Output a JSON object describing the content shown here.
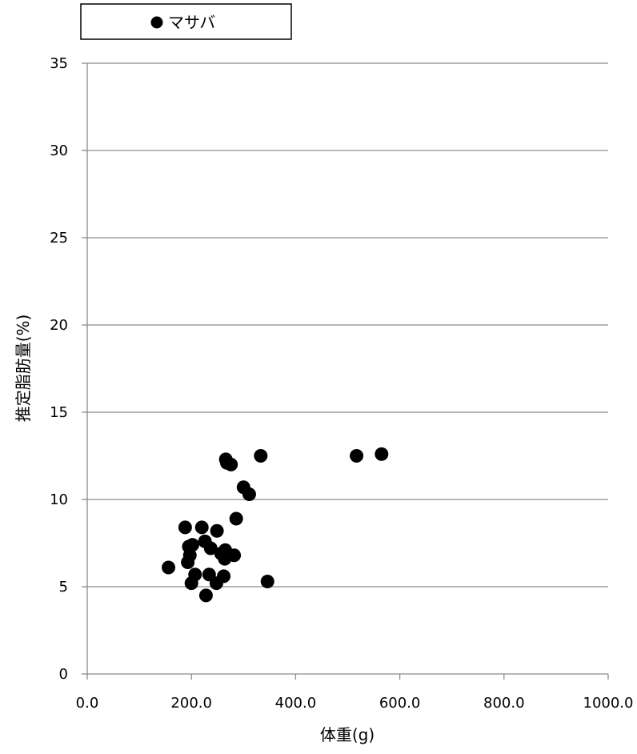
{
  "chart_data": {
    "type": "scatter",
    "title": "",
    "xlabel": "体重(g)",
    "ylabel": "推定脂肪量(%)",
    "xlim": [
      0,
      1000
    ],
    "ylim": [
      0,
      35
    ],
    "x_ticks": [
      "0.0",
      "200.0",
      "400.0",
      "600.0",
      "800.0",
      "1000.0"
    ],
    "y_ticks": [
      "0",
      "5",
      "10",
      "15",
      "20",
      "25",
      "30",
      "35"
    ],
    "grid": "horizontal",
    "legend_position": "top",
    "series": [
      {
        "name": "マサバ",
        "color": "#000000",
        "marker": "circle",
        "points": [
          {
            "x": 156,
            "y": 6.1
          },
          {
            "x": 188,
            "y": 8.4
          },
          {
            "x": 193,
            "y": 6.4
          },
          {
            "x": 195,
            "y": 7.3
          },
          {
            "x": 197,
            "y": 6.8
          },
          {
            "x": 200,
            "y": 5.2
          },
          {
            "x": 202,
            "y": 7.4
          },
          {
            "x": 207,
            "y": 5.7
          },
          {
            "x": 220,
            "y": 8.4
          },
          {
            "x": 226,
            "y": 7.6
          },
          {
            "x": 228,
            "y": 4.5
          },
          {
            "x": 234,
            "y": 5.7
          },
          {
            "x": 237,
            "y": 7.2
          },
          {
            "x": 248,
            "y": 5.2
          },
          {
            "x": 249,
            "y": 8.2
          },
          {
            "x": 257,
            "y": 6.9
          },
          {
            "x": 262,
            "y": 5.6
          },
          {
            "x": 264,
            "y": 6.6
          },
          {
            "x": 265,
            "y": 7.1
          },
          {
            "x": 266,
            "y": 12.3
          },
          {
            "x": 268,
            "y": 12.1
          },
          {
            "x": 276,
            "y": 12.0
          },
          {
            "x": 282,
            "y": 6.8
          },
          {
            "x": 286,
            "y": 8.9
          },
          {
            "x": 300,
            "y": 10.7
          },
          {
            "x": 311,
            "y": 10.3
          },
          {
            "x": 333,
            "y": 12.5
          },
          {
            "x": 346,
            "y": 5.3
          },
          {
            "x": 517,
            "y": 12.5
          },
          {
            "x": 565,
            "y": 12.6
          }
        ]
      }
    ]
  }
}
